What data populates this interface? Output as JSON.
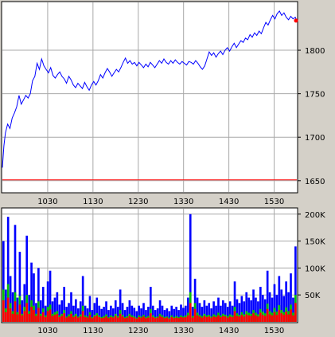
{
  "chart_data": [
    {
      "type": "line",
      "title": "",
      "xlabel": "",
      "ylabel": "",
      "x_ticks": [
        "1030",
        "1130",
        "1230",
        "1330",
        "1430",
        "1530"
      ],
      "y_ticks": [
        "1800",
        "1750",
        "1700",
        "1650"
      ],
      "ylim": [
        1637,
        1855
      ],
      "x_range": [
        "0930",
        "1600"
      ],
      "reference_line": {
        "y": 1651,
        "color": "#ff0000"
      },
      "last_marker": {
        "x": "1600",
        "y": 1834,
        "color": "#ff0000"
      },
      "grid": true,
      "series": [
        {
          "color": "#0000ff",
          "points": [
            [
              "0930",
              1665
            ],
            [
              "0932",
              1690
            ],
            [
              "0934",
              1705
            ],
            [
              "0937",
              1715
            ],
            [
              "0940",
              1710
            ],
            [
              "0943",
              1722
            ],
            [
              "0946",
              1728
            ],
            [
              "0949",
              1735
            ],
            [
              "0952",
              1748
            ],
            [
              "0955",
              1738
            ],
            [
              "0958",
              1743
            ],
            [
              "1001",
              1748
            ],
            [
              "1004",
              1745
            ],
            [
              "1007",
              1750
            ],
            [
              "1010",
              1765
            ],
            [
              "1013",
              1770
            ],
            [
              "1016",
              1785
            ],
            [
              "1019",
              1778
            ],
            [
              "1022",
              1790
            ],
            [
              "1025",
              1782
            ],
            [
              "1028",
              1778
            ],
            [
              "1031",
              1774
            ],
            [
              "1034",
              1780
            ],
            [
              "1037",
              1771
            ],
            [
              "1040",
              1768
            ],
            [
              "1043",
              1772
            ],
            [
              "1046",
              1775
            ],
            [
              "1049",
              1770
            ],
            [
              "1052",
              1767
            ],
            [
              "1055",
              1762
            ],
            [
              "1058",
              1770
            ],
            [
              "1101",
              1766
            ],
            [
              "1104",
              1760
            ],
            [
              "1107",
              1757
            ],
            [
              "1110",
              1762
            ],
            [
              "1113",
              1759
            ],
            [
              "1116",
              1756
            ],
            [
              "1119",
              1763
            ],
            [
              "1122",
              1758
            ],
            [
              "1125",
              1754
            ],
            [
              "1128",
              1760
            ],
            [
              "1131",
              1764
            ],
            [
              "1134",
              1760
            ],
            [
              "1137",
              1765
            ],
            [
              "1140",
              1772
            ],
            [
              "1143",
              1768
            ],
            [
              "1146",
              1774
            ],
            [
              "1149",
              1779
            ],
            [
              "1152",
              1775
            ],
            [
              "1155",
              1770
            ],
            [
              "1158",
              1774
            ],
            [
              "1201",
              1778
            ],
            [
              "1204",
              1775
            ],
            [
              "1207",
              1780
            ],
            [
              "1210",
              1786
            ],
            [
              "1213",
              1791
            ],
            [
              "1216",
              1785
            ],
            [
              "1219",
              1788
            ],
            [
              "1222",
              1784
            ],
            [
              "1225",
              1786
            ],
            [
              "1228",
              1782
            ],
            [
              "1231",
              1786
            ],
            [
              "1234",
              1783
            ],
            [
              "1237",
              1780
            ],
            [
              "1240",
              1784
            ],
            [
              "1243",
              1781
            ],
            [
              "1246",
              1786
            ],
            [
              "1249",
              1783
            ],
            [
              "1252",
              1780
            ],
            [
              "1255",
              1784
            ],
            [
              "1258",
              1788
            ],
            [
              "1301",
              1785
            ],
            [
              "1304",
              1790
            ],
            [
              "1307",
              1786
            ],
            [
              "1310",
              1784
            ],
            [
              "1313",
              1788
            ],
            [
              "1316",
              1785
            ],
            [
              "1319",
              1789
            ],
            [
              "1322",
              1786
            ],
            [
              "1325",
              1784
            ],
            [
              "1328",
              1787
            ],
            [
              "1331",
              1785
            ],
            [
              "1334",
              1783
            ],
            [
              "1337",
              1787
            ],
            [
              "1340",
              1786
            ],
            [
              "1343",
              1784
            ],
            [
              "1346",
              1788
            ],
            [
              "1349",
              1785
            ],
            [
              "1352",
              1781
            ],
            [
              "1355",
              1778
            ],
            [
              "1358",
              1782
            ],
            [
              "1401",
              1790
            ],
            [
              "1404",
              1798
            ],
            [
              "1407",
              1794
            ],
            [
              "1410",
              1797
            ],
            [
              "1413",
              1792
            ],
            [
              "1416",
              1796
            ],
            [
              "1419",
              1799
            ],
            [
              "1422",
              1795
            ],
            [
              "1425",
              1800
            ],
            [
              "1428",
              1803
            ],
            [
              "1431",
              1799
            ],
            [
              "1434",
              1804
            ],
            [
              "1437",
              1808
            ],
            [
              "1440",
              1803
            ],
            [
              "1443",
              1807
            ],
            [
              "1446",
              1811
            ],
            [
              "1449",
              1809
            ],
            [
              "1452",
              1814
            ],
            [
              "1455",
              1812
            ],
            [
              "1458",
              1818
            ],
            [
              "1501",
              1815
            ],
            [
              "1504",
              1820
            ],
            [
              "1507",
              1817
            ],
            [
              "1510",
              1822
            ],
            [
              "1513",
              1819
            ],
            [
              "1516",
              1826
            ],
            [
              "1519",
              1832
            ],
            [
              "1522",
              1829
            ],
            [
              "1525",
              1835
            ],
            [
              "1528",
              1840
            ],
            [
              "1531",
              1836
            ],
            [
              "1534",
              1842
            ],
            [
              "1537",
              1845
            ],
            [
              "1540",
              1840
            ],
            [
              "1543",
              1843
            ],
            [
              "1546",
              1838
            ],
            [
              "1549",
              1835
            ],
            [
              "1552",
              1839
            ],
            [
              "1555",
              1836
            ],
            [
              "1558",
              1838
            ],
            [
              "1600",
              1834
            ]
          ]
        }
      ]
    },
    {
      "type": "bar",
      "title": "",
      "xlabel": "",
      "ylabel": "",
      "x_ticks": [
        "1030",
        "1130",
        "1230",
        "1330",
        "1430",
        "1530"
      ],
      "y_ticks": [
        "200K",
        "150K",
        "100K",
        "50K"
      ],
      "ylim": [
        0,
        210000
      ],
      "x_range": [
        "0930",
        "1600"
      ],
      "grid": true,
      "series": [
        {
          "name": "",
          "color": "#0000ff",
          "values": [
            150000,
            60000,
            195000,
            85000,
            55000,
            180000,
            45000,
            130000,
            40000,
            70000,
            160000,
            50000,
            110000,
            90000,
            35000,
            100000,
            40000,
            65000,
            30000,
            75000,
            95000,
            38000,
            45000,
            55000,
            32000,
            40000,
            65000,
            28000,
            35000,
            55000,
            30000,
            42000,
            25000,
            38000,
            85000,
            30000,
            25000,
            48000,
            22000,
            35000,
            45000,
            30000,
            24000,
            28000,
            38000,
            22000,
            30000,
            25000,
            40000,
            28000,
            60000,
            35000,
            22000,
            28000,
            40000,
            30000,
            26000,
            20000,
            30000,
            25000,
            35000,
            22000,
            28000,
            65000,
            30000,
            22000,
            25000,
            40000,
            30000,
            22000,
            25000,
            20000,
            30000,
            24000,
            28000,
            22000,
            32000,
            26000,
            30000,
            45000,
            200000,
            28000,
            80000,
            45000,
            35000,
            28000,
            40000,
            30000,
            35000,
            25000,
            38000,
            30000,
            45000,
            30000,
            40000,
            35000,
            28000,
            38000,
            30000,
            75000,
            42000,
            35000,
            48000,
            38000,
            55000,
            45000,
            40000,
            60000,
            45000,
            38000,
            65000,
            50000,
            42000,
            95000,
            55000,
            45000,
            70000,
            50000,
            85000,
            60000,
            48000,
            75000,
            55000,
            90000,
            45000,
            140000
          ]
        },
        {
          "name": "",
          "color": "#00c000",
          "values": [
            60000,
            25000,
            70000,
            35000,
            20000,
            55000,
            18000,
            48000,
            15000,
            28000,
            50000,
            20000,
            40000,
            30000,
            15000,
            38000,
            15000,
            25000,
            12000,
            28000,
            32000,
            15000,
            18000,
            20000,
            12000,
            15000,
            22000,
            10000,
            14000,
            20000,
            12000,
            15000,
            10000,
            14000,
            30000,
            12000,
            10000,
            18000,
            9000,
            13000,
            16000,
            12000,
            9000,
            11000,
            14000,
            9000,
            12000,
            10000,
            15000,
            11000,
            22000,
            13000,
            9000,
            11000,
            15000,
            12000,
            10000,
            8000,
            12000,
            10000,
            13000,
            9000,
            11000,
            24000,
            12000,
            9000,
            10000,
            15000,
            12000,
            9000,
            10000,
            8000,
            12000,
            9000,
            11000,
            9000,
            12000,
            10000,
            12000,
            17000,
            55000,
            11000,
            35000,
            17000,
            13000,
            11000,
            15000,
            12000,
            13000,
            10000,
            14000,
            12000,
            17000,
            12000,
            15000,
            13000,
            11000,
            14000,
            12000,
            28000,
            16000,
            13000,
            18000,
            14000,
            20000,
            17000,
            15000,
            22000,
            17000,
            14000,
            24000,
            19000,
            16000,
            34000,
            20000,
            17000,
            26000,
            19000,
            31000,
            22000,
            18000,
            27000,
            20000,
            32000,
            17000,
            50000
          ]
        },
        {
          "name": "",
          "color": "#ff0000",
          "values": [
            40000,
            18000,
            45000,
            25000,
            15000,
            38000,
            14000,
            32000,
            12000,
            20000,
            35000,
            15000,
            28000,
            22000,
            11000,
            26000,
            11000,
            18000,
            9000,
            20000,
            23000,
            11000,
            13000,
            15000,
            9000,
            11000,
            16000,
            8000,
            10000,
            15000,
            9000,
            11000,
            8000,
            10000,
            20000,
            9000,
            8000,
            13000,
            7000,
            10000,
            12000,
            9000,
            7000,
            8000,
            10000,
            7000,
            9000,
            8000,
            11000,
            8000,
            15000,
            10000,
            7000,
            8000,
            11000,
            9000,
            8000,
            6000,
            9000,
            8000,
            10000,
            7000,
            8000,
            16000,
            9000,
            7000,
            8000,
            11000,
            9000,
            7000,
            8000,
            6000,
            9000,
            7000,
            8000,
            7000,
            9000,
            8000,
            9000,
            12000,
            35000,
            8000,
            24000,
            12000,
            10000,
            8000,
            11000,
            9000,
            10000,
            8000,
            10000,
            9000,
            12000,
            9000,
            11000,
            10000,
            8000,
            10000,
            9000,
            20000,
            11000,
            10000,
            13000,
            10000,
            14000,
            12000,
            11000,
            16000,
            12000,
            10000,
            17000,
            13000,
            11000,
            24000,
            14000,
            12000,
            18000,
            13000,
            22000,
            16000,
            13000,
            19000,
            14000,
            23000,
            12000,
            35000
          ]
        }
      ]
    }
  ]
}
